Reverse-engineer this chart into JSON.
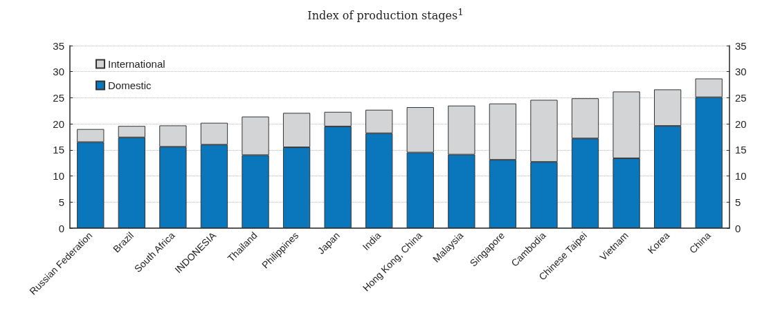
{
  "chart_data": {
    "type": "bar",
    "subtitle": "Index of production stages$^{1}$",
    "categories": [
      "Russian Federation",
      "Brazil",
      "South Africa",
      "INDONESIA",
      "Thailand",
      "Philippines",
      "Japan",
      "India",
      "Hong Kong, China",
      "Malaysia",
      "Singapore",
      "Cambodia",
      "Chinese Taipei",
      "Vietnam",
      "Korea",
      "China"
    ],
    "series": [
      {
        "name": "Domestic",
        "color": "#0a76bb",
        "values": [
          16.5,
          17.4,
          15.6,
          16.0,
          14.0,
          15.5,
          19.5,
          18.2,
          14.5,
          14.1,
          13.1,
          12.7,
          17.2,
          13.4,
          19.6,
          25.1
        ]
      },
      {
        "name": "International",
        "color": "#d3d4d6",
        "values": [
          2.5,
          2.2,
          4.1,
          4.2,
          7.4,
          6.6,
          2.8,
          4.5,
          8.7,
          9.4,
          10.8,
          11.9,
          7.7,
          12.8,
          7.0,
          3.6
        ]
      }
    ],
    "stacked": true,
    "ylim": [
      0,
      35
    ],
    "yticks": [
      0,
      5,
      10,
      15,
      20,
      25,
      30,
      35
    ],
    "y2lim": [
      0,
      35
    ],
    "y2ticks": [
      0,
      5,
      10,
      15,
      20,
      25,
      30,
      35
    ],
    "grid": "y",
    "legend": "top left"
  }
}
